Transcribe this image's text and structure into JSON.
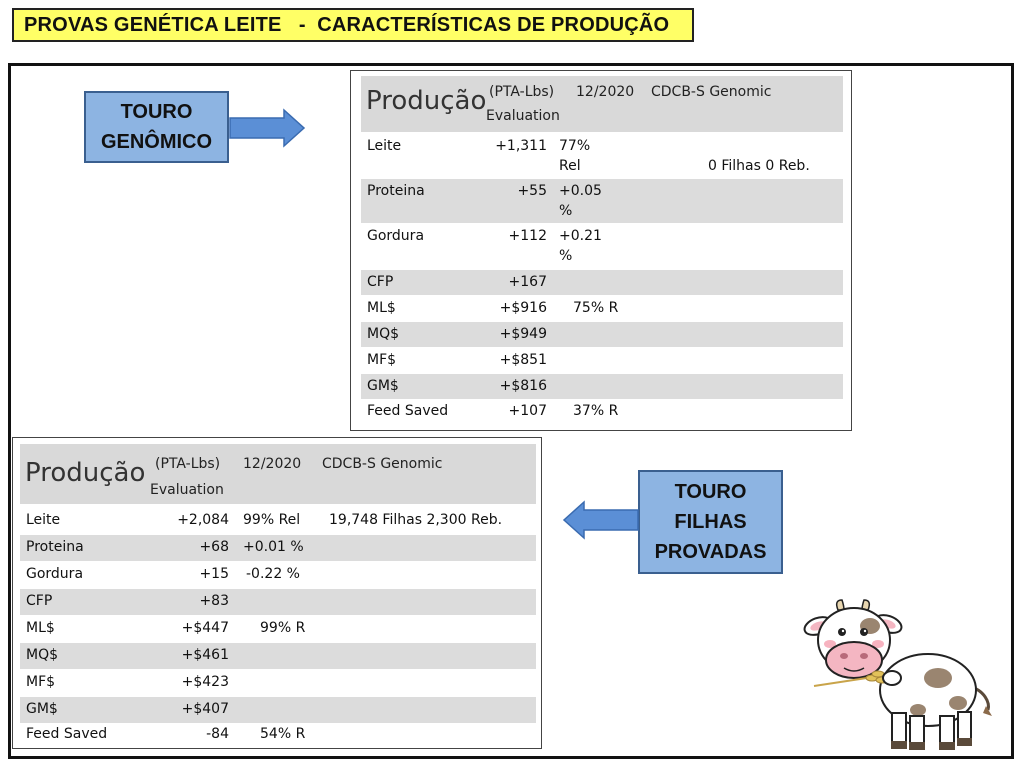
{
  "title": "PROVAS GENÉTICA LEITE   -  CARACTERÍSTICAS DE PRODUÇÃO",
  "labels": {
    "genomic": [
      "TOURO",
      "GENÔMICO"
    ],
    "proven": [
      "TOURO",
      "FILHAS",
      "PROVADAS"
    ]
  },
  "colors": {
    "title_bg": "#ffff66",
    "label_bg": "#8db4e2",
    "arrow": "#5b8fd6",
    "row_shade": "#dcdcdc"
  },
  "panel_genomic": {
    "header": {
      "title": "Produção",
      "unit": "(PTA-Lbs)",
      "date": "12/2020",
      "source": "CDCB-S Genomic",
      "sub": "Evaluation"
    },
    "rows": [
      {
        "name": "Leite",
        "value": "+1,311",
        "extra": "77%",
        "extra2": "Rel",
        "note": "0 Filhas 0 Reb."
      },
      {
        "name": "Proteina",
        "value": "+55",
        "extra": "+0.05",
        "extra2": "%"
      },
      {
        "name": "Gordura",
        "value": "+112",
        "extra": "+0.21",
        "extra2": "%"
      },
      {
        "name": "CFP",
        "value": "+167"
      },
      {
        "name": "ML$",
        "value": "+$916",
        "extra": "75% R"
      },
      {
        "name": "MQ$",
        "value": "+$949"
      },
      {
        "name": "MF$",
        "value": "+$851"
      },
      {
        "name": "GM$",
        "value": "+$816"
      },
      {
        "name": "Feed Saved",
        "value": "+107",
        "extra": "37% R"
      }
    ]
  },
  "panel_proven": {
    "header": {
      "title": "Produção",
      "unit": "(PTA-Lbs)",
      "date": "12/2020",
      "source": "CDCB-S Genomic",
      "sub": "Evaluation"
    },
    "rows": [
      {
        "name": "Leite",
        "value": "+2,084",
        "extra": "99% Rel",
        "note": "19,748 Filhas 2,300 Reb."
      },
      {
        "name": "Proteina",
        "value": "+68",
        "extra": "+0.01 %"
      },
      {
        "name": "Gordura",
        "value": "+15",
        "extra": "-0.22 %"
      },
      {
        "name": "CFP",
        "value": "+83"
      },
      {
        "name": "ML$",
        "value": "+$447",
        "extra": "99% R"
      },
      {
        "name": "MQ$",
        "value": "+$461"
      },
      {
        "name": "MF$",
        "value": "+$423"
      },
      {
        "name": "GM$",
        "value": "+$407"
      },
      {
        "name": "Feed Saved",
        "value": "-84",
        "extra": "54% R"
      }
    ]
  },
  "icons": {
    "cow": "cow-illustration",
    "arrow_right": "arrow-right-icon",
    "arrow_left": "arrow-left-icon"
  }
}
